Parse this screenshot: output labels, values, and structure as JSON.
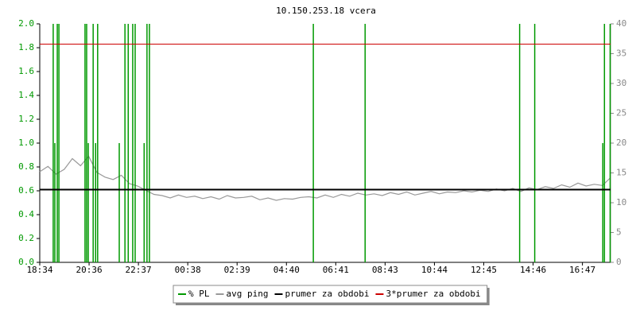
{
  "chart_data": {
    "type": "line",
    "title": "10.150.253.18 vcera",
    "xlim": [
      0,
      1400
    ],
    "xticks": [
      {
        "value": 0,
        "label": "18:34"
      },
      {
        "value": 121,
        "label": "20:36"
      },
      {
        "value": 242,
        "label": "22:37"
      },
      {
        "value": 363,
        "label": "00:38"
      },
      {
        "value": 484,
        "label": "02:39"
      },
      {
        "value": 605,
        "label": "04:40"
      },
      {
        "value": 726,
        "label": "06:41"
      },
      {
        "value": 847,
        "label": "08:43"
      },
      {
        "value": 968,
        "label": "10:44"
      },
      {
        "value": 1089,
        "label": "12:45"
      },
      {
        "value": 1210,
        "label": "14:46"
      },
      {
        "value": 1331,
        "label": "16:47"
      }
    ],
    "ylim": [
      0,
      2
    ],
    "yticks": [
      {
        "value": 0,
        "label": "0.0"
      },
      0.2,
      0.4,
      0.6,
      0.8,
      {
        "value": 1,
        "label": "1.0"
      },
      1.2,
      1.4,
      1.6,
      1.8,
      {
        "value": 2,
        "label": "2.0"
      }
    ],
    "y2lim": [
      0,
      40
    ],
    "y2ticks": [
      0,
      5,
      10,
      15,
      20,
      25,
      30,
      35,
      40
    ],
    "series": [
      {
        "name": "% PL",
        "color": "#009900",
        "style": "impulse",
        "axis": "y",
        "x": [
          33,
          37,
          43,
          47,
          111,
          115,
          119,
          131,
          137,
          142,
          195,
          209,
          217,
          228,
          234,
          256,
          263,
          269,
          671,
          798,
          1177,
          1214,
          1381,
          1385,
          1399
        ],
        "values": [
          2,
          1,
          2,
          2,
          2,
          2,
          1,
          2,
          1,
          2,
          1,
          2,
          2,
          2,
          2,
          1,
          2,
          2,
          2,
          2,
          2,
          2,
          1,
          2,
          2
        ]
      },
      {
        "name": "avg ping",
        "color": "#999999",
        "style": "line",
        "axis": "y2",
        "x": [
          0,
          20,
          40,
          60,
          80,
          100,
          120,
          140,
          160,
          180,
          200,
          220,
          240,
          260,
          280,
          300,
          320,
          340,
          360,
          380,
          400,
          420,
          440,
          460,
          480,
          500,
          520,
          540,
          560,
          580,
          600,
          620,
          640,
          660,
          680,
          700,
          720,
          740,
          760,
          780,
          800,
          820,
          840,
          860,
          880,
          900,
          920,
          940,
          960,
          980,
          1000,
          1020,
          1040,
          1060,
          1080,
          1100,
          1120,
          1140,
          1160,
          1180,
          1200,
          1220,
          1240,
          1260,
          1280,
          1300,
          1320,
          1340,
          1360,
          1380,
          1400
        ],
        "values": [
          15.2,
          16.1,
          14.8,
          15.6,
          17.4,
          16.2,
          17.8,
          15.1,
          14.3,
          13.9,
          14.6,
          13.2,
          12.8,
          12.1,
          11.4,
          11.2,
          10.8,
          11.3,
          10.9,
          11.1,
          10.7,
          11.0,
          10.6,
          11.2,
          10.8,
          10.9,
          11.1,
          10.5,
          10.8,
          10.4,
          10.7,
          10.6,
          10.9,
          11.0,
          10.8,
          11.3,
          10.9,
          11.4,
          11.1,
          11.6,
          11.3,
          11.5,
          11.2,
          11.7,
          11.4,
          11.8,
          11.3,
          11.6,
          11.9,
          11.5,
          11.8,
          11.7,
          12.0,
          11.8,
          12.1,
          11.9,
          12.3,
          12.0,
          12.4,
          11.9,
          12.5,
          12.2,
          12.7,
          12.4,
          13.0,
          12.6,
          13.3,
          12.8,
          13.1,
          12.9,
          14.2
        ]
      },
      {
        "name": "prumer za obdobi",
        "color": "#000000",
        "style": "hline",
        "axis": "y2",
        "values": [
          12.2
        ]
      },
      {
        "name": "3*prumer za obdobi",
        "color": "#cc0000",
        "style": "hline",
        "axis": "y2",
        "values": [
          36.6
        ]
      }
    ]
  }
}
